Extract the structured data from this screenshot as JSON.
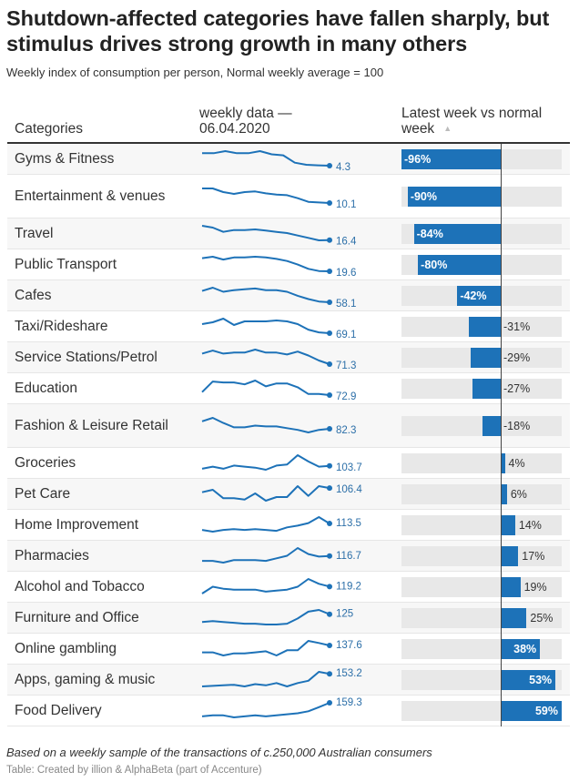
{
  "title": "Shutdown-affected categories have fallen sharply, but stimulus drives strong growth in many others",
  "subtitle": "Weekly index of consumption per person, Normal weekly average = 100",
  "headers": {
    "categories": "Categories",
    "weekly_data": "weekly data — 06.04.2020",
    "latest_vs_normal": "Latest week vs normal week",
    "sort_icon": "triangle-up-icon"
  },
  "colors": {
    "accent": "#1d72b8",
    "track": "#e8e8e8",
    "row_alt": "#f7f7f7"
  },
  "footer": {
    "note": "Based on a weekly sample of the transactions of c.250,000 Australian consumers",
    "source": "Table: Created by illion & AlphaBeta (part of Accenture)"
  },
  "chart_data": {
    "type": "table",
    "title": "Shutdown-affected categories have fallen sharply, but stimulus drives strong growth in many others",
    "columns": [
      "Categories",
      "weekly data — 06.04.2020",
      "Latest week vs normal week"
    ],
    "bar_axis": {
      "min": -100,
      "max": 60,
      "zero": 0,
      "unit": "%"
    },
    "rows": [
      {
        "category": "Gyms & Fitness",
        "latest_index": "4.3",
        "change_pct": -96,
        "change_label": "-96%",
        "sparkline": [
          98,
          98,
          102,
          98,
          98,
          102,
          96,
          94,
          80,
          76,
          75,
          74.3
        ]
      },
      {
        "category": "Entertainment & venues",
        "latest_index": "10.1",
        "change_pct": -90,
        "change_label": "-90%",
        "sparkline": [
          100,
          100,
          94,
          91,
          94,
          95,
          92,
          90,
          89,
          84,
          78,
          77,
          76.1
        ]
      },
      {
        "category": "Travel",
        "latest_index": "16.4",
        "change_pct": -84,
        "change_label": "-84%",
        "sparkline": [
          100,
          97,
          90,
          93,
          93,
          94,
          92,
          90,
          88,
          84,
          80,
          76,
          76.4
        ]
      },
      {
        "category": "Public Transport",
        "latest_index": "19.6",
        "change_pct": -80,
        "change_label": "-80%",
        "sparkline": [
          98,
          100,
          96,
          99,
          99,
          100,
          99,
          97,
          94,
          89,
          83,
          80,
          79.6
        ]
      },
      {
        "category": "Cafes",
        "latest_index": "58.1",
        "change_pct": -42,
        "change_label": "-42%",
        "sparkline": [
          97,
          101,
          96,
          98,
          99,
          100,
          98,
          98,
          96,
          91,
          87,
          84,
          83.1
        ]
      },
      {
        "category": "Taxi/Rideshare",
        "latest_index": "69.1",
        "change_pct": -31,
        "change_label": "-31%",
        "sparkline": [
          96,
          98,
          102,
          95,
          99,
          99,
          99,
          100,
          99,
          96,
          90,
          87,
          86.1
        ]
      },
      {
        "category": "Service Stations/Petrol",
        "latest_index": "71.3",
        "change_pct": -29,
        "change_label": "-29%",
        "sparkline": [
          97,
          100,
          97,
          98,
          98,
          101,
          98,
          98,
          96,
          99,
          95,
          90,
          86.3
        ]
      },
      {
        "category": "Education",
        "latest_index": "72.9",
        "change_pct": -27,
        "change_label": "-27%",
        "sparkline": [
          90,
          101,
          100,
          100,
          98,
          102,
          96,
          99,
          99,
          95,
          88,
          88,
          86.9
        ]
      },
      {
        "category": "Fashion & Leisure Retail",
        "latest_index": "82.3",
        "change_pct": -18,
        "change_label": "-18%",
        "sparkline": [
          98,
          102,
          96,
          91,
          91,
          93,
          92,
          92,
          90,
          88,
          85,
          88,
          89.3
        ]
      },
      {
        "category": "Groceries",
        "latest_index": "103.7",
        "change_pct": 4,
        "change_label": "4%",
        "sparkline": [
          97,
          99,
          97,
          100,
          99,
          98,
          96,
          100,
          101,
          110,
          104,
          99,
          99.7
        ]
      },
      {
        "category": "Pet Care",
        "latest_index": "106.4",
        "change_pct": 6,
        "change_label": "6%",
        "sparkline": [
          101,
          103,
          96,
          96,
          95,
          100,
          94,
          97,
          97,
          106,
          98,
          106,
          104.4
        ]
      },
      {
        "category": "Home Improvement",
        "latest_index": "113.5",
        "change_pct": 14,
        "change_label": "14%",
        "sparkline": [
          96,
          94,
          96,
          97,
          96,
          97,
          96,
          95,
          99,
          101,
          104,
          111,
          103.5
        ]
      },
      {
        "category": "Pharmacies",
        "latest_index": "116.7",
        "change_pct": 17,
        "change_label": "17%",
        "sparkline": [
          98,
          98,
          96,
          99,
          99,
          99,
          98,
          101,
          104,
          113,
          106,
          103,
          103.7
        ]
      },
      {
        "category": "Alcohol and Tobacco",
        "latest_index": "119.2",
        "change_pct": 19,
        "change_label": "19%",
        "sparkline": [
          94,
          101,
          99,
          98,
          98,
          98,
          96,
          97,
          98,
          101,
          109,
          104,
          101.2
        ]
      },
      {
        "category": "Furniture and Office",
        "latest_index": "125",
        "change_pct": 25,
        "change_label": "25%",
        "sparkline": [
          99,
          100,
          99,
          98,
          97,
          97,
          96,
          96,
          97,
          103,
          111,
          113,
          108
        ]
      },
      {
        "category": "Online gambling",
        "latest_index": "137.6",
        "change_pct": 38,
        "change_label": "38%",
        "sparkline": [
          99,
          99,
          96,
          98,
          98,
          99,
          100,
          96,
          101,
          101,
          110,
          108,
          105.6
        ]
      },
      {
        "category": "Apps, gaming & music",
        "latest_index": "153.2",
        "change_pct": 53,
        "change_label": "53%",
        "sparkline": [
          95,
          95.5,
          96,
          96.5,
          95,
          97,
          96,
          98,
          95,
          98,
          100,
          108,
          106.2
        ]
      },
      {
        "category": "Food Delivery",
        "latest_index": "159.3",
        "change_pct": 59,
        "change_label": "59%",
        "sparkline": [
          96,
          97,
          97,
          95,
          96,
          97,
          96,
          97,
          98,
          99,
          101,
          105,
          109.3
        ]
      }
    ]
  }
}
